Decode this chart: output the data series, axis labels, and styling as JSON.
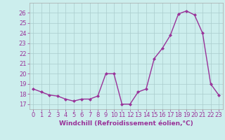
{
  "x": [
    0,
    1,
    2,
    3,
    4,
    5,
    6,
    7,
    8,
    9,
    10,
    11,
    12,
    13,
    14,
    15,
    16,
    17,
    18,
    19,
    20,
    21,
    22,
    23
  ],
  "y": [
    18.5,
    18.2,
    17.9,
    17.8,
    17.5,
    17.3,
    17.5,
    17.5,
    17.8,
    20.0,
    20.0,
    17.0,
    17.0,
    18.2,
    18.5,
    21.5,
    22.5,
    23.8,
    25.9,
    26.2,
    25.8,
    24.0,
    19.0,
    17.9
  ],
  "line_color": "#993399",
  "marker": "D",
  "marker_size": 2.0,
  "linewidth": 1.0,
  "xlabel": "Windchill (Refroidissement éolien,°C)",
  "xlabel_fontsize": 6.5,
  "ylim": [
    16.5,
    27.0
  ],
  "xlim": [
    -0.5,
    23.5
  ],
  "yticks": [
    17,
    18,
    19,
    20,
    21,
    22,
    23,
    24,
    25,
    26
  ],
  "xticks": [
    0,
    1,
    2,
    3,
    4,
    5,
    6,
    7,
    8,
    9,
    10,
    11,
    12,
    13,
    14,
    15,
    16,
    17,
    18,
    19,
    20,
    21,
    22,
    23
  ],
  "background_color": "#cceeed",
  "grid_color": "#aacccc",
  "tick_fontsize": 6.0,
  "tick_color": "#993399",
  "label_color": "#993399",
  "spine_color": "#aaaaaa"
}
